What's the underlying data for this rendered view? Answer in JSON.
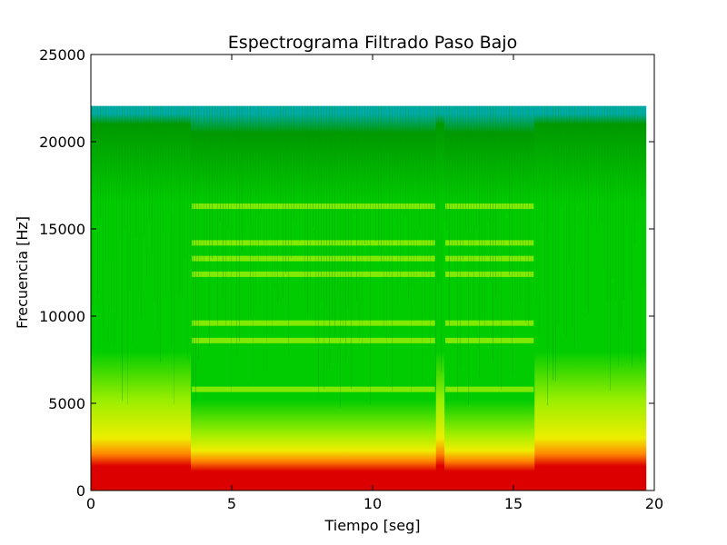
{
  "chart_data": {
    "type": "heatmap",
    "title": "Espectrograma Filtrado Paso Bajo",
    "xlabel": "Tiempo [seg]",
    "ylabel": "Frecuencia [Hz]",
    "xlim": [
      0,
      20
    ],
    "ylim": [
      0,
      25000
    ],
    "x_ticks": [
      "0",
      "5",
      "10",
      "15",
      "20"
    ],
    "y_ticks": [
      "0",
      "5000",
      "10000",
      "15000",
      "20000",
      "25000"
    ],
    "grid": false,
    "colormap": "spectral (red high energy, yellow, green, blue low energy)",
    "data_extent": {
      "time_end_seg": 19.7,
      "freq_max_hz": 22050
    },
    "segments": [
      {
        "start": 0.0,
        "end": 3.55,
        "kind": "noise"
      },
      {
        "start": 3.55,
        "end": 12.25,
        "kind": "tonal"
      },
      {
        "start": 12.25,
        "end": 12.55,
        "kind": "noise"
      },
      {
        "start": 12.55,
        "end": 15.75,
        "kind": "tonal"
      },
      {
        "start": 15.75,
        "end": 19.7,
        "kind": "noise"
      }
    ],
    "harmonic_bands_hz": [
      5800,
      8600,
      9600,
      12400,
      13300,
      14200,
      16300
    ],
    "colors": {
      "red": "#dd0000",
      "orange": "#ff8800",
      "yellow": "#eeee00",
      "yellow_green": "#99ee00",
      "green": "#00cc00",
      "dark_green": "#009900",
      "teal": "#00aaaa",
      "axes": "#000000",
      "background": "#ffffff"
    }
  }
}
